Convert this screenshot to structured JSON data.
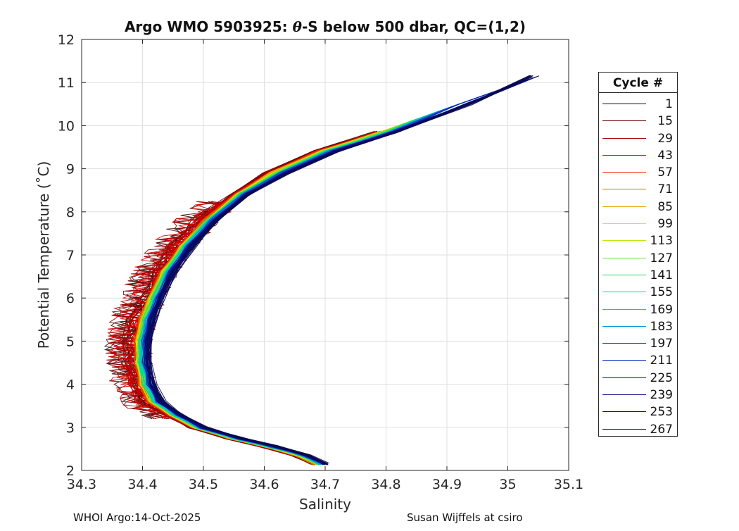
{
  "chart_data": {
    "type": "line",
    "title_prefix": "Argo WMO 5903925: ",
    "title_symbol": "θ",
    "title_suffix": "-S below 500 dbar,  QC=(1,2)",
    "xlabel": "Salinity",
    "ylabel": "Potential Temperature (˚C)",
    "xlim": [
      34.3,
      35.1
    ],
    "ylim": [
      2,
      12
    ],
    "xticks": [
      34.3,
      34.4,
      34.5,
      34.6,
      34.7,
      34.8,
      34.9,
      35,
      35.1
    ],
    "xtick_labels": [
      "34.3",
      "34.4",
      "34.5",
      "34.6",
      "34.7",
      "34.8",
      "34.9",
      "35",
      "35.1"
    ],
    "yticks": [
      2,
      3,
      4,
      5,
      6,
      7,
      8,
      9,
      10,
      11,
      12
    ],
    "ytick_labels": [
      "2",
      "3",
      "4",
      "5",
      "6",
      "7",
      "8",
      "9",
      "10",
      "11",
      "12"
    ],
    "grid": true,
    "legend_title": "Cycle #",
    "legend_position": "outside-right",
    "series": [
      {
        "name": "1",
        "color": "#3b0000"
      },
      {
        "name": "15",
        "color": "#6e0000"
      },
      {
        "name": "29",
        "color": "#a30000"
      },
      {
        "name": "43",
        "color": "#d60000"
      },
      {
        "name": "57",
        "color": "#ff2000"
      },
      {
        "name": "71",
        "color": "#c87800"
      },
      {
        "name": "85",
        "color": "#e6a800"
      },
      {
        "name": "99",
        "color": "#f0e000"
      },
      {
        "name": "113",
        "color": "#b8ea10"
      },
      {
        "name": "127",
        "color": "#70e030"
      },
      {
        "name": "141",
        "color": "#20d860"
      },
      {
        "name": "155",
        "color": "#00d8a0"
      },
      {
        "name": "169",
        "color": "#00c8d0"
      },
      {
        "name": "183",
        "color": "#0098d8"
      },
      {
        "name": "197",
        "color": "#0058c8"
      },
      {
        "name": "211",
        "color": "#0028b0"
      },
      {
        "name": "225",
        "color": "#081098"
      },
      {
        "name": "239",
        "color": "#0a0a80"
      },
      {
        "name": "253",
        "color": "#0a0a68"
      },
      {
        "name": "267",
        "color": "#0a0a50"
      }
    ],
    "base_profile": [
      {
        "s": 34.69,
        "t": 2.15
      },
      {
        "s": 34.66,
        "t": 2.35
      },
      {
        "s": 34.61,
        "t": 2.55
      },
      {
        "s": 34.55,
        "t": 2.75
      },
      {
        "s": 34.49,
        "t": 3.0
      },
      {
        "s": 34.45,
        "t": 3.3
      },
      {
        "s": 34.42,
        "t": 3.6
      },
      {
        "s": 34.405,
        "t": 4.0
      },
      {
        "s": 34.397,
        "t": 4.5
      },
      {
        "s": 34.398,
        "t": 5.0
      },
      {
        "s": 34.405,
        "t": 5.5
      },
      {
        "s": 34.42,
        "t": 6.0
      },
      {
        "s": 34.44,
        "t": 6.6
      },
      {
        "s": 34.47,
        "t": 7.2
      },
      {
        "s": 34.51,
        "t": 7.8
      },
      {
        "s": 34.56,
        "t": 8.4
      },
      {
        "s": 34.62,
        "t": 8.9
      },
      {
        "s": 34.7,
        "t": 9.4
      },
      {
        "s": 34.8,
        "t": 9.85
      },
      {
        "s": 34.92,
        "t": 10.5
      },
      {
        "s": 35.02,
        "t": 11.15
      }
    ]
  },
  "footer": {
    "left": "WHOI Argo:14-Oct-2025",
    "right": "Susan Wijffels at csiro"
  }
}
